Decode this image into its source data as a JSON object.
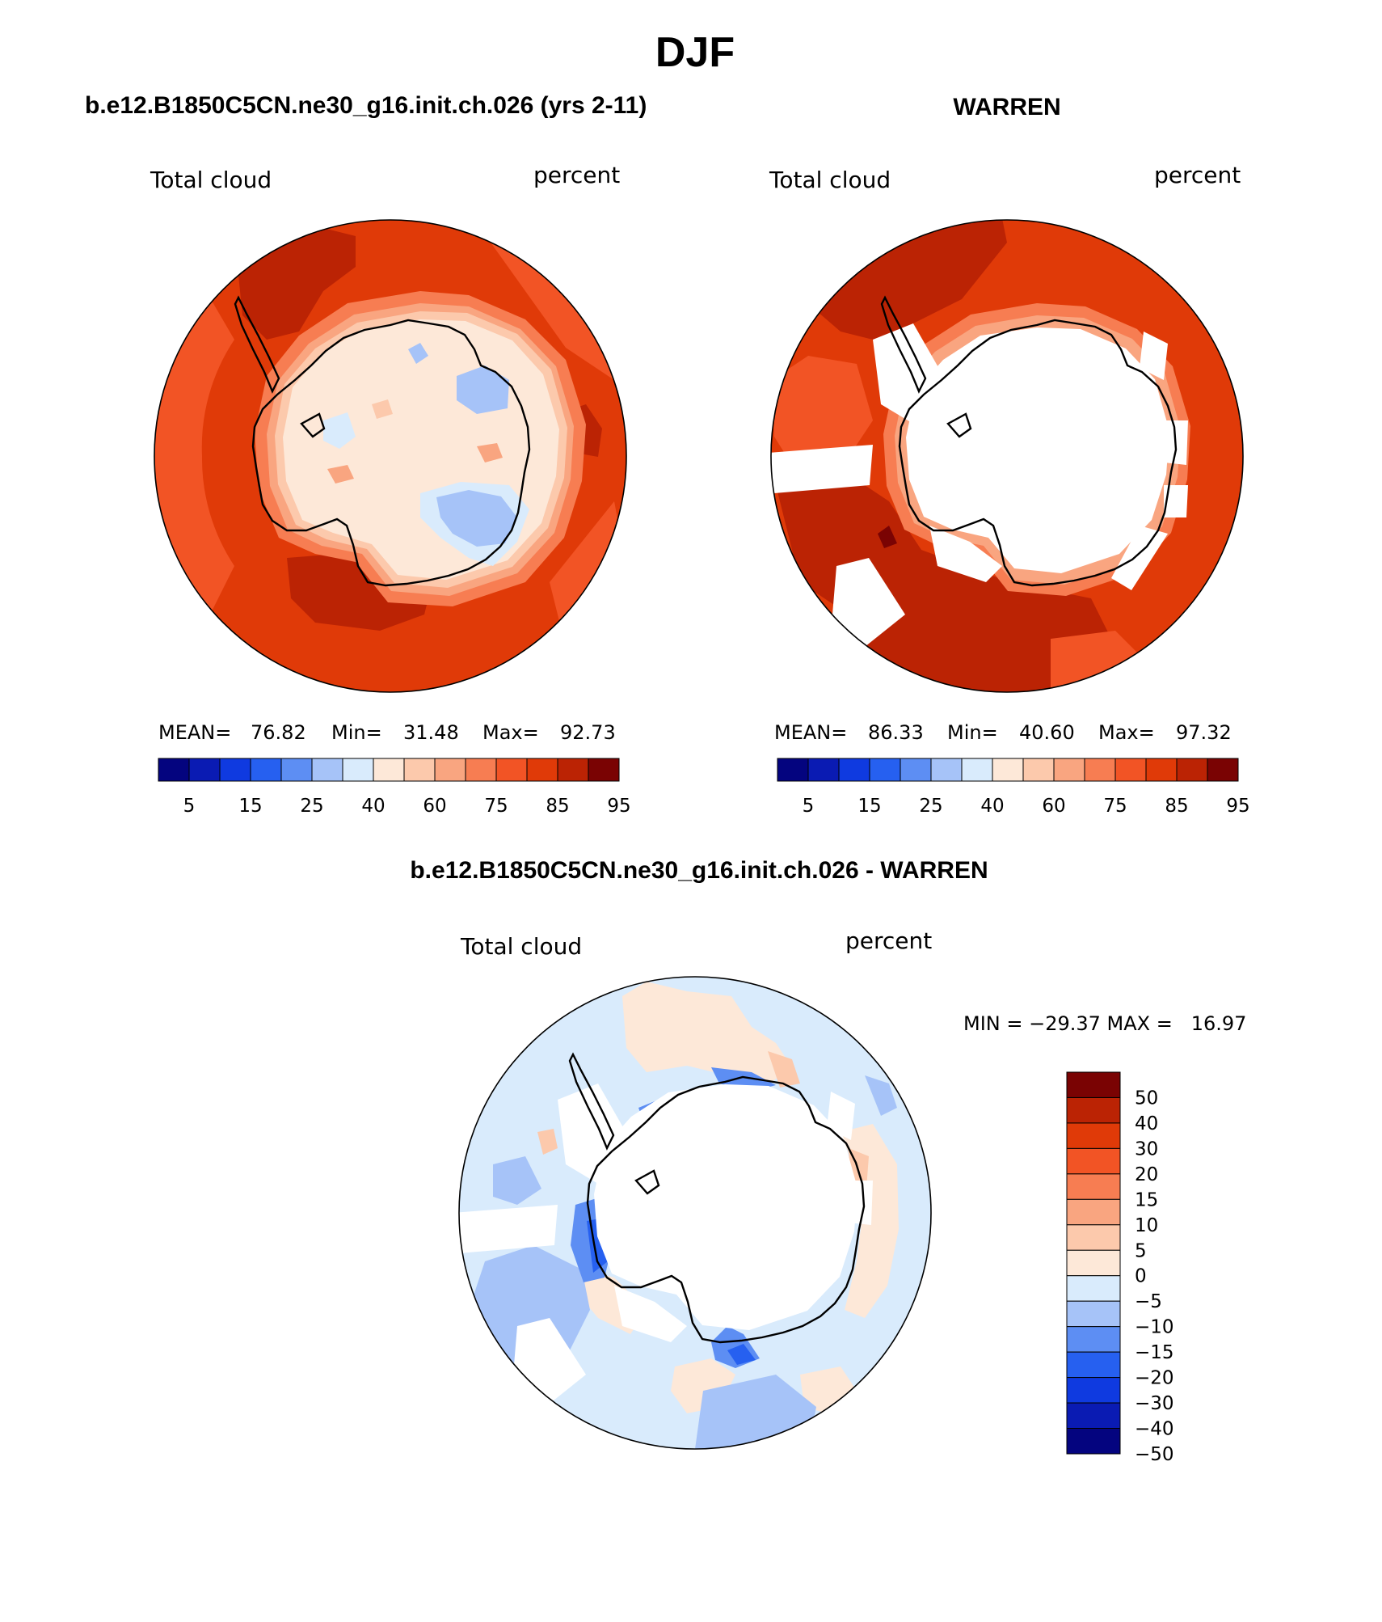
{
  "page": {
    "title": "DJF"
  },
  "panels": {
    "model": {
      "title": "b.e12.B1850C5CN.ne30_g16.init.ch.026 (yrs 2-11)",
      "var_label": "Total cloud",
      "units": "percent",
      "stats": {
        "mean_label": "MEAN=",
        "mean": "76.82",
        "min_label": "Min=",
        "min": "31.48",
        "max_label": "Max=",
        "max": "92.73"
      }
    },
    "obs": {
      "title": "WARREN",
      "var_label": "Total cloud",
      "units": "percent",
      "stats": {
        "mean_label": "MEAN=",
        "mean": "86.33",
        "min_label": "Min=",
        "min": "40.60",
        "max_label": "Max=",
        "max": "97.32"
      }
    },
    "diff": {
      "title": "b.e12.B1850C5CN.ne30_g16.init.ch.026 - WARREN",
      "var_label": "Total cloud",
      "units": "percent",
      "minmax": "MIN = −29.37 MAX =   16.97"
    }
  },
  "colorbars": {
    "abs": {
      "colors": [
        "#04047f",
        "#0a1bb3",
        "#0f3ae0",
        "#2660f0",
        "#5d8ef3",
        "#a6c3f8",
        "#d9ebfc",
        "#fde8d8",
        "#fcc9ac",
        "#f9a580",
        "#f77d52",
        "#f25425",
        "#e03a08",
        "#bb2304",
        "#7a0303"
      ],
      "labels": [
        "5",
        "15",
        "25",
        "40",
        "60",
        "75",
        "85",
        "95"
      ]
    },
    "diff": {
      "colors": [
        "#04047f",
        "#0a1bb3",
        "#0f3ae0",
        "#2660f0",
        "#5d8ef3",
        "#a6c3f8",
        "#d9ebfc",
        "#fde8d8",
        "#fcc9ac",
        "#f9a580",
        "#f77d52",
        "#f25425",
        "#e03a08",
        "#bb2304",
        "#7a0303"
      ],
      "labels": [
        "50",
        "40",
        "30",
        "20",
        "15",
        "10",
        "5",
        "0",
        "−5",
        "−10",
        "−15",
        "−20",
        "−30",
        "−40",
        "−50"
      ]
    }
  }
}
